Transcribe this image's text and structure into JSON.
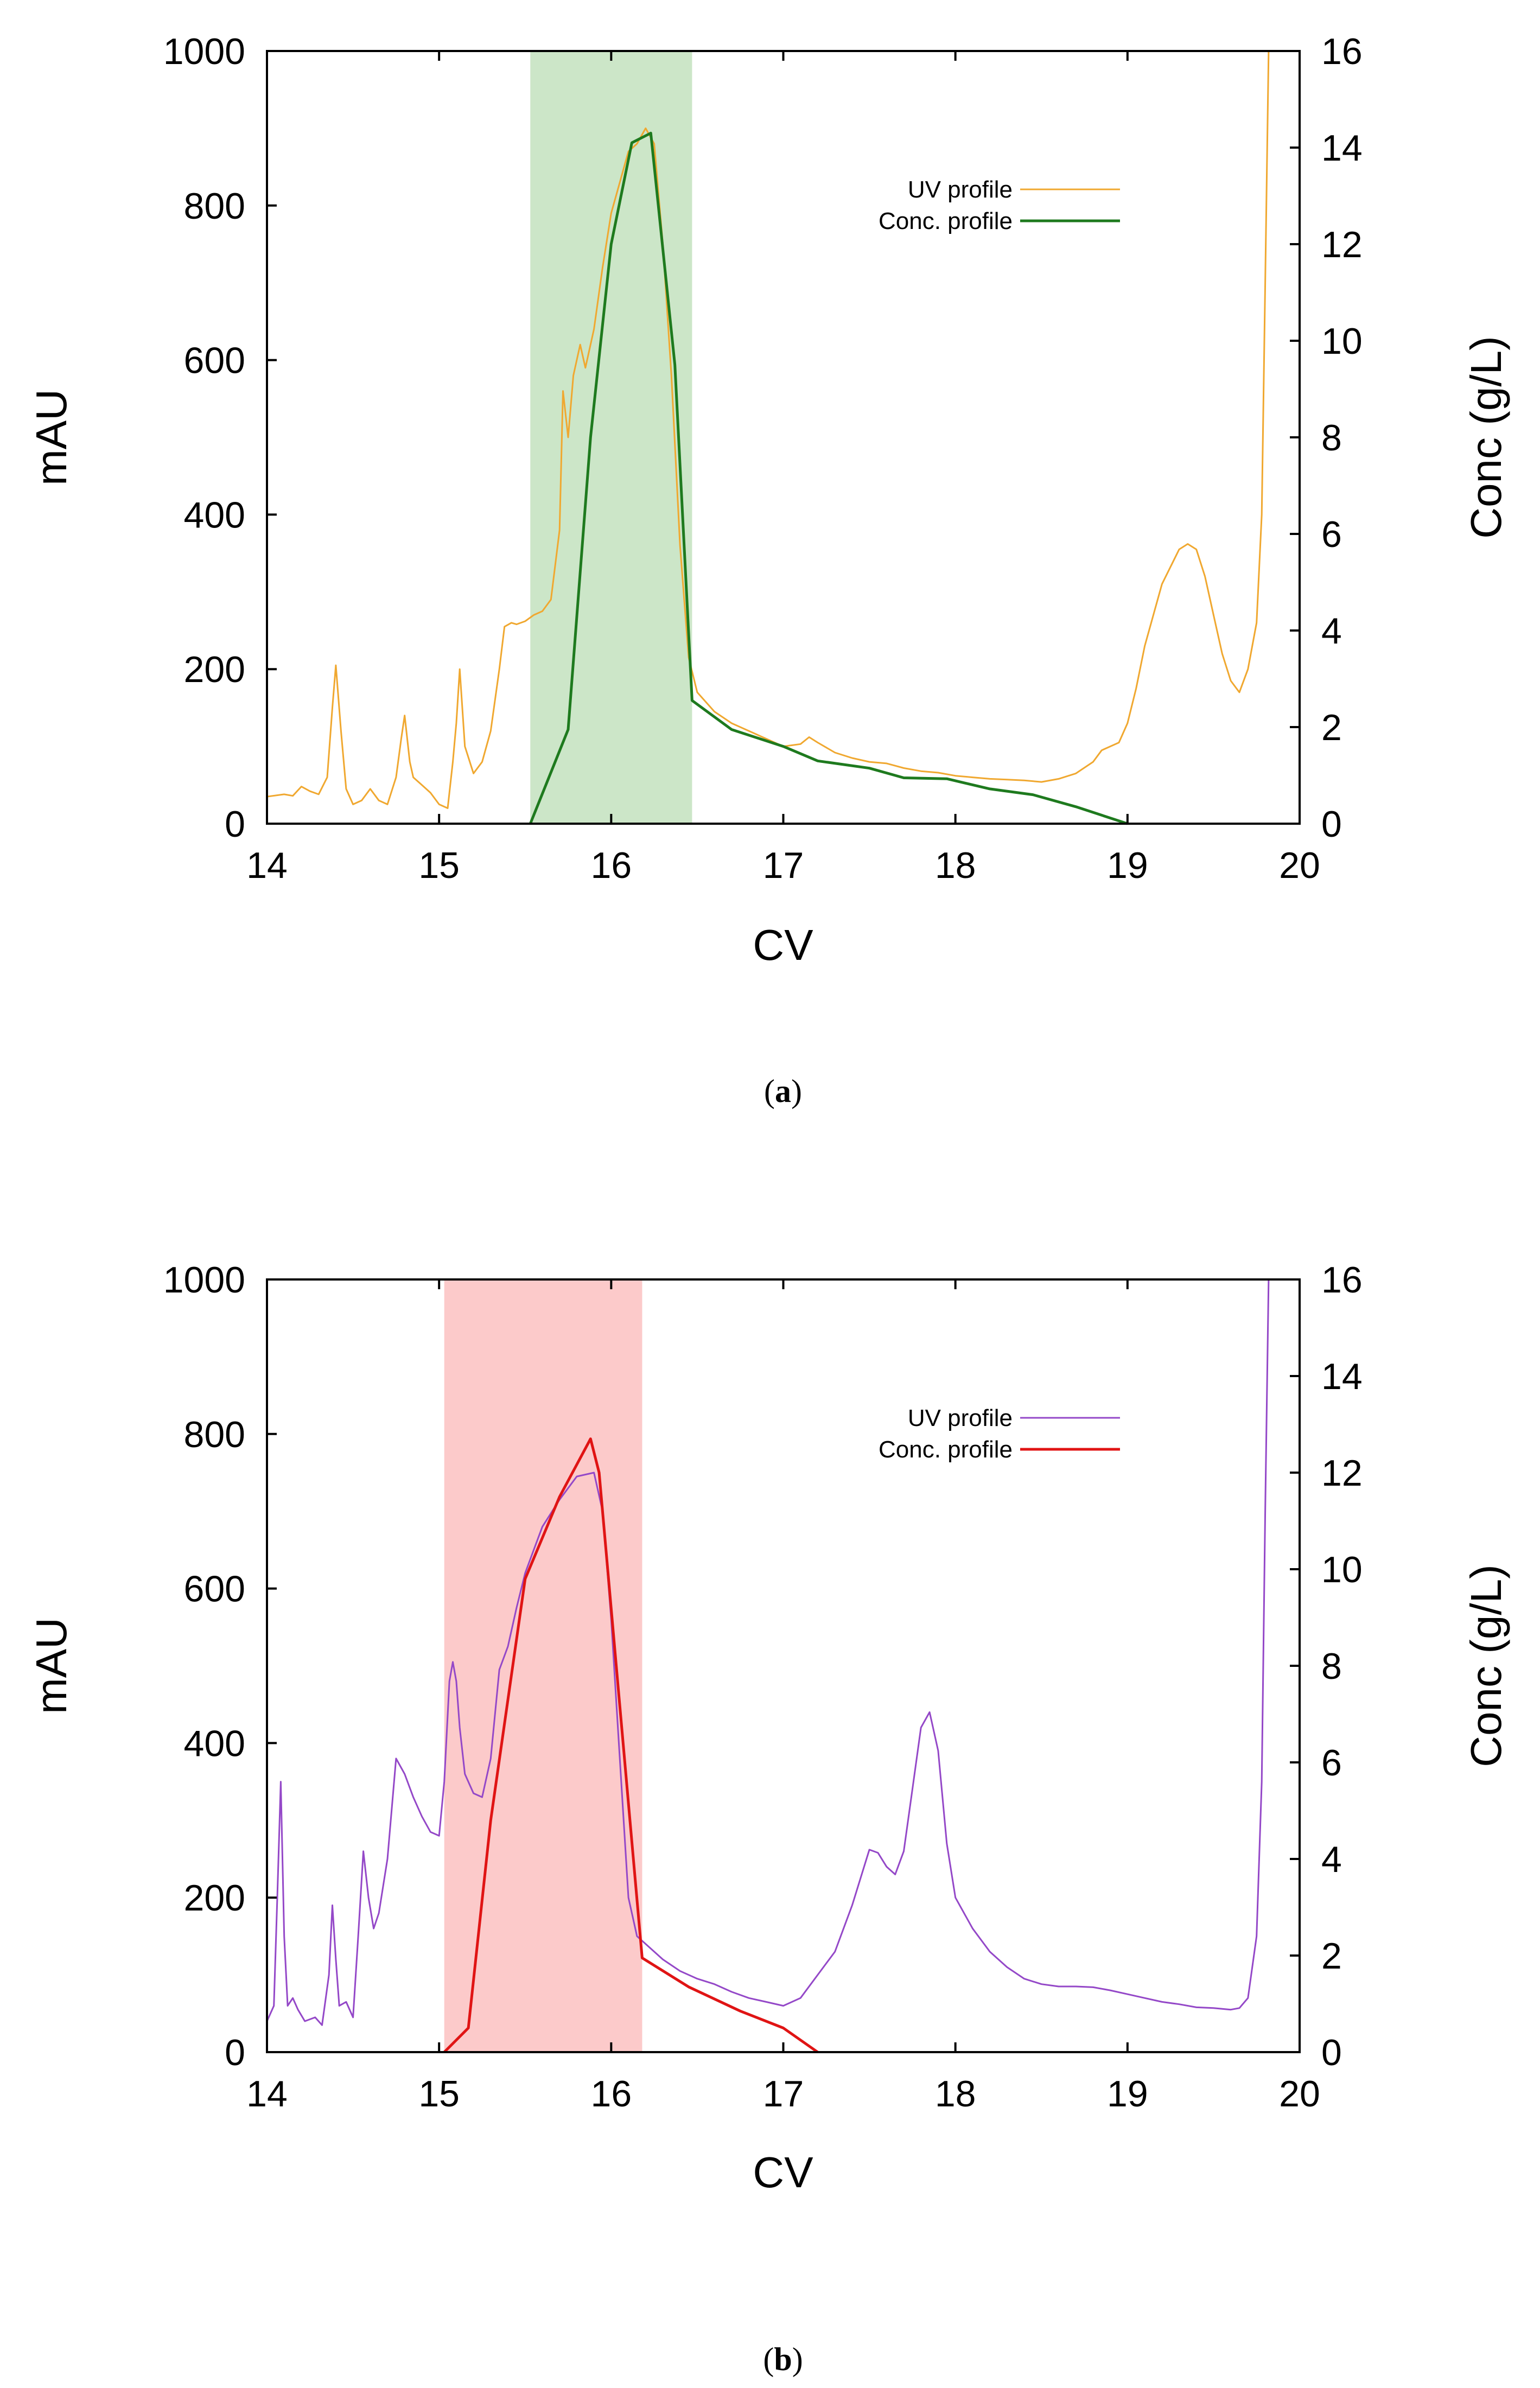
{
  "chart_data": [
    {
      "type": "line",
      "caption_label": "a",
      "xlabel": "CV",
      "ylabel": "mAU",
      "y2label": "Conc (g/L)",
      "xlim": [
        14,
        20
      ],
      "ylim": [
        0,
        1000
      ],
      "y2lim": [
        0,
        16
      ],
      "x_ticks": [
        "14",
        "15",
        "16",
        "17",
        "18",
        "19",
        "20"
      ],
      "y_ticks": [
        "0",
        "200",
        "400",
        "600",
        "800",
        "1000"
      ],
      "y2_ticks": [
        "0",
        "2",
        "4",
        "6",
        "8",
        "10",
        "12",
        "14",
        "16"
      ],
      "shaded_region": {
        "x": [
          15.53,
          16.47
        ],
        "color": "#cce6c8"
      },
      "legend_position": "top-right",
      "series": [
        {
          "name": "UV profile",
          "axis": "left",
          "color": "#f0a830",
          "points": [
            [
              14.0,
              35
            ],
            [
              14.1,
              38
            ],
            [
              14.15,
              36
            ],
            [
              14.2,
              48
            ],
            [
              14.25,
              42
            ],
            [
              14.3,
              38
            ],
            [
              14.35,
              60
            ],
            [
              14.38,
              150
            ],
            [
              14.4,
              205
            ],
            [
              14.43,
              120
            ],
            [
              14.46,
              45
            ],
            [
              14.5,
              25
            ],
            [
              14.55,
              30
            ],
            [
              14.6,
              45
            ],
            [
              14.65,
              30
            ],
            [
              14.7,
              25
            ],
            [
              14.75,
              60
            ],
            [
              14.78,
              110
            ],
            [
              14.8,
              140
            ],
            [
              14.83,
              80
            ],
            [
              14.85,
              60
            ],
            [
              14.9,
              50
            ],
            [
              14.95,
              40
            ],
            [
              15.0,
              25
            ],
            [
              15.05,
              20
            ],
            [
              15.08,
              80
            ],
            [
              15.1,
              130
            ],
            [
              15.12,
              200
            ],
            [
              15.15,
              100
            ],
            [
              15.2,
              65
            ],
            [
              15.25,
              80
            ],
            [
              15.3,
              120
            ],
            [
              15.35,
              200
            ],
            [
              15.38,
              255
            ],
            [
              15.42,
              260
            ],
            [
              15.45,
              258
            ],
            [
              15.5,
              262
            ],
            [
              15.55,
              270
            ],
            [
              15.6,
              275
            ],
            [
              15.65,
              290
            ],
            [
              15.7,
              380
            ],
            [
              15.72,
              560
            ],
            [
              15.75,
              500
            ],
            [
              15.78,
              580
            ],
            [
              15.82,
              620
            ],
            [
              15.85,
              590
            ],
            [
              15.9,
              640
            ],
            [
              15.95,
              720
            ],
            [
              16.0,
              790
            ],
            [
              16.05,
              830
            ],
            [
              16.1,
              870
            ],
            [
              16.15,
              880
            ],
            [
              16.2,
              900
            ],
            [
              16.25,
              880
            ],
            [
              16.3,
              750
            ],
            [
              16.35,
              580
            ],
            [
              16.4,
              360
            ],
            [
              16.45,
              215
            ],
            [
              16.5,
              170
            ],
            [
              16.6,
              145
            ],
            [
              16.7,
              130
            ],
            [
              16.8,
              120
            ],
            [
              16.9,
              110
            ],
            [
              17.0,
              100
            ],
            [
              17.1,
              103
            ],
            [
              17.15,
              112
            ],
            [
              17.2,
              105
            ],
            [
              17.3,
              92
            ],
            [
              17.4,
              85
            ],
            [
              17.5,
              80
            ],
            [
              17.6,
              78
            ],
            [
              17.7,
              72
            ],
            [
              17.8,
              68
            ],
            [
              17.9,
              66
            ],
            [
              18.0,
              62
            ],
            [
              18.1,
              60
            ],
            [
              18.2,
              58
            ],
            [
              18.3,
              57
            ],
            [
              18.4,
              56
            ],
            [
              18.5,
              54
            ],
            [
              18.6,
              58
            ],
            [
              18.7,
              65
            ],
            [
              18.8,
              80
            ],
            [
              18.85,
              95
            ],
            [
              18.9,
              100
            ],
            [
              18.95,
              105
            ],
            [
              19.0,
              130
            ],
            [
              19.05,
              175
            ],
            [
              19.1,
              230
            ],
            [
              19.2,
              310
            ],
            [
              19.3,
              355
            ],
            [
              19.35,
              362
            ],
            [
              19.4,
              355
            ],
            [
              19.45,
              320
            ],
            [
              19.5,
              270
            ],
            [
              19.55,
              220
            ],
            [
              19.6,
              185
            ],
            [
              19.65,
              170
            ],
            [
              19.7,
              200
            ],
            [
              19.75,
              260
            ],
            [
              19.78,
              400
            ],
            [
              19.8,
              700
            ],
            [
              19.82,
              1000
            ]
          ]
        },
        {
          "name": "Conc. profile",
          "axis": "right",
          "color": "#1e7a1e",
          "points": [
            [
              15.53,
              0
            ],
            [
              15.75,
              1.95
            ],
            [
              15.88,
              8
            ],
            [
              16.0,
              12
            ],
            [
              16.12,
              14.1
            ],
            [
              16.23,
              14.3
            ],
            [
              16.37,
              9.5
            ],
            [
              16.47,
              2.55
            ],
            [
              16.7,
              1.95
            ],
            [
              17.0,
              1.6
            ],
            [
              17.2,
              1.3
            ],
            [
              17.5,
              1.15
            ],
            [
              17.7,
              0.95
            ],
            [
              17.95,
              0.93
            ],
            [
              18.2,
              0.72
            ],
            [
              18.45,
              0.6
            ],
            [
              18.7,
              0.35
            ],
            [
              19.0,
              0.0
            ]
          ]
        }
      ]
    },
    {
      "type": "line",
      "caption_label": "b",
      "xlabel": "CV",
      "ylabel": "mAU",
      "y2label": "Conc (g/L)",
      "xlim": [
        14,
        20
      ],
      "ylim": [
        0,
        1000
      ],
      "y2lim": [
        0,
        16
      ],
      "x_ticks": [
        "14",
        "15",
        "16",
        "17",
        "18",
        "19",
        "20"
      ],
      "y_ticks": [
        "0",
        "200",
        "400",
        "600",
        "800",
        "1000"
      ],
      "y2_ticks": [
        "0",
        "2",
        "4",
        "6",
        "8",
        "10",
        "12",
        "14",
        "16"
      ],
      "shaded_region": {
        "x": [
          15.03,
          16.18
        ],
        "color": "#fccaca"
      },
      "legend_position": "top-right",
      "series": [
        {
          "name": "UV profile",
          "axis": "left",
          "color": "#9448c8",
          "points": [
            [
              14.0,
              40
            ],
            [
              14.04,
              60
            ],
            [
              14.06,
              200
            ],
            [
              14.08,
              350
            ],
            [
              14.1,
              150
            ],
            [
              14.12,
              60
            ],
            [
              14.15,
              70
            ],
            [
              14.18,
              55
            ],
            [
              14.22,
              40
            ],
            [
              14.28,
              45
            ],
            [
              14.32,
              35
            ],
            [
              14.36,
              100
            ],
            [
              14.38,
              190
            ],
            [
              14.4,
              120
            ],
            [
              14.42,
              60
            ],
            [
              14.46,
              65
            ],
            [
              14.5,
              45
            ],
            [
              14.53,
              150
            ],
            [
              14.56,
              260
            ],
            [
              14.59,
              200
            ],
            [
              14.62,
              160
            ],
            [
              14.65,
              180
            ],
            [
              14.7,
              250
            ],
            [
              14.75,
              380
            ],
            [
              14.8,
              360
            ],
            [
              14.85,
              330
            ],
            [
              14.9,
              305
            ],
            [
              14.95,
              285
            ],
            [
              15.0,
              280
            ],
            [
              15.03,
              350
            ],
            [
              15.06,
              480
            ],
            [
              15.08,
              505
            ],
            [
              15.1,
              480
            ],
            [
              15.12,
              420
            ],
            [
              15.15,
              360
            ],
            [
              15.2,
              335
            ],
            [
              15.25,
              330
            ],
            [
              15.3,
              380
            ],
            [
              15.35,
              495
            ],
            [
              15.4,
              525
            ],
            [
              15.45,
              575
            ],
            [
              15.5,
              620
            ],
            [
              15.55,
              650
            ],
            [
              15.6,
              680
            ],
            [
              15.7,
              715
            ],
            [
              15.8,
              745
            ],
            [
              15.9,
              750
            ],
            [
              15.95,
              700
            ],
            [
              16.0,
              560
            ],
            [
              16.05,
              380
            ],
            [
              16.1,
              200
            ],
            [
              16.15,
              150
            ],
            [
              16.2,
              140
            ],
            [
              16.3,
              120
            ],
            [
              16.4,
              105
            ],
            [
              16.5,
              95
            ],
            [
              16.6,
              88
            ],
            [
              16.7,
              78
            ],
            [
              16.8,
              70
            ],
            [
              16.9,
              65
            ],
            [
              17.0,
              60
            ],
            [
              17.1,
              70
            ],
            [
              17.2,
              100
            ],
            [
              17.3,
              130
            ],
            [
              17.4,
              190
            ],
            [
              17.5,
              262
            ],
            [
              17.55,
              258
            ],
            [
              17.6,
              240
            ],
            [
              17.65,
              230
            ],
            [
              17.7,
              260
            ],
            [
              17.75,
              340
            ],
            [
              17.8,
              420
            ],
            [
              17.85,
              440
            ],
            [
              17.9,
              390
            ],
            [
              17.95,
              270
            ],
            [
              18.0,
              200
            ],
            [
              18.1,
              160
            ],
            [
              18.2,
              130
            ],
            [
              18.3,
              110
            ],
            [
              18.4,
              95
            ],
            [
              18.5,
              88
            ],
            [
              18.6,
              85
            ],
            [
              18.7,
              85
            ],
            [
              18.8,
              84
            ],
            [
              18.9,
              80
            ],
            [
              19.0,
              75
            ],
            [
              19.1,
              70
            ],
            [
              19.2,
              65
            ],
            [
              19.3,
              62
            ],
            [
              19.4,
              58
            ],
            [
              19.5,
              57
            ],
            [
              19.6,
              55
            ],
            [
              19.65,
              57
            ],
            [
              19.7,
              70
            ],
            [
              19.75,
              150
            ],
            [
              19.78,
              350
            ],
            [
              19.8,
              700
            ],
            [
              19.82,
              1000
            ]
          ]
        },
        {
          "name": "Conc. profile",
          "axis": "right",
          "color": "#e01414",
          "points": [
            [
              15.03,
              0
            ],
            [
              15.17,
              0.5
            ],
            [
              15.3,
              4.8
            ],
            [
              15.5,
              9.8
            ],
            [
              15.7,
              11.5
            ],
            [
              15.88,
              12.7
            ],
            [
              15.93,
              12.0
            ],
            [
              16.18,
              1.95
            ],
            [
              16.45,
              1.35
            ],
            [
              16.75,
              0.85
            ],
            [
              17.0,
              0.5
            ],
            [
              17.2,
              0.0
            ]
          ]
        }
      ]
    }
  ]
}
